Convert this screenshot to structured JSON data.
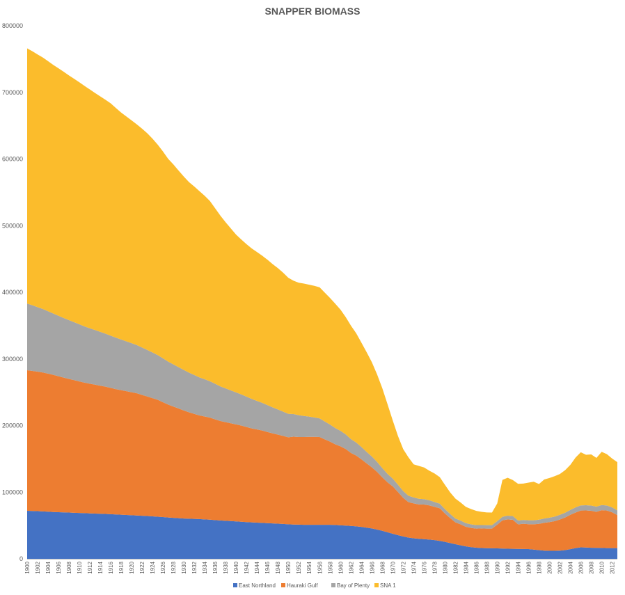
{
  "chart_data": {
    "type": "area",
    "stacked": true,
    "title": "SNAPPER BIOMASS",
    "xlabel": "",
    "ylabel": "",
    "ylim": [
      0,
      800000
    ],
    "yticks": [
      "0",
      "100000",
      "200000",
      "300000",
      "400000",
      "500000",
      "600000",
      "700000",
      "800000"
    ],
    "xticks": [
      "1900",
      "1902",
      "1904",
      "1906",
      "1908",
      "1910",
      "1912",
      "1914",
      "1916",
      "1918",
      "1920",
      "1922",
      "1924",
      "1926",
      "1928",
      "1930",
      "1932",
      "1934",
      "1936",
      "1938",
      "1940",
      "1942",
      "1944",
      "1946",
      "1948",
      "1950",
      "1952",
      "1954",
      "1956",
      "1958",
      "1960",
      "1962",
      "1964",
      "1966",
      "1968",
      "1970",
      "1972",
      "1974",
      "1976",
      "1978",
      "1980",
      "1982",
      "1984",
      "1986",
      "1988",
      "1990",
      "1992",
      "1994",
      "1996",
      "1998",
      "2000",
      "2002",
      "2004",
      "2006",
      "2008",
      "2010",
      "2012"
    ],
    "x": [
      1900,
      1901,
      1902,
      1903,
      1904,
      1905,
      1906,
      1907,
      1908,
      1909,
      1910,
      1911,
      1912,
      1913,
      1914,
      1915,
      1916,
      1917,
      1918,
      1919,
      1920,
      1921,
      1922,
      1923,
      1924,
      1925,
      1926,
      1927,
      1928,
      1929,
      1930,
      1931,
      1932,
      1933,
      1934,
      1935,
      1936,
      1937,
      1938,
      1939,
      1940,
      1941,
      1942,
      1943,
      1944,
      1945,
      1946,
      1947,
      1948,
      1949,
      1950,
      1951,
      1952,
      1953,
      1954,
      1955,
      1956,
      1957,
      1958,
      1959,
      1960,
      1961,
      1962,
      1963,
      1964,
      1965,
      1966,
      1967,
      1968,
      1969,
      1970,
      1971,
      1972,
      1973,
      1974,
      1975,
      1976,
      1977,
      1978,
      1979,
      1980,
      1981,
      1982,
      1983,
      1984,
      1985,
      1986,
      1987,
      1988,
      1989,
      1990,
      1991,
      1992,
      1993,
      1994,
      1995,
      1996,
      1997,
      1998,
      1999,
      2000,
      2001,
      2002,
      2003,
      2004,
      2005,
      2006,
      2007,
      2008,
      2009,
      2010,
      2011,
      2012,
      2013
    ],
    "series": [
      {
        "name": "East Northland",
        "color": "#4472C4",
        "values": [
          72000,
          71800,
          71500,
          71100,
          70700,
          70300,
          70000,
          69700,
          69400,
          69100,
          68800,
          68500,
          68200,
          67900,
          67600,
          67300,
          67000,
          66600,
          66200,
          65800,
          65400,
          65000,
          64600,
          64200,
          63700,
          63200,
          62600,
          62000,
          61500,
          61000,
          60500,
          60200,
          59900,
          59600,
          59200,
          58700,
          58100,
          57600,
          57100,
          56600,
          56100,
          55600,
          55100,
          54700,
          54300,
          53900,
          53500,
          53100,
          52700,
          52300,
          51800,
          51500,
          51300,
          51100,
          51000,
          51000,
          51000,
          51000,
          51000,
          50800,
          50300,
          49900,
          49400,
          48700,
          47900,
          46800,
          45500,
          43900,
          42000,
          39800,
          37600,
          35500,
          33500,
          31900,
          30800,
          30000,
          29500,
          28800,
          28100,
          26900,
          25400,
          23600,
          21900,
          20200,
          18700,
          17500,
          16700,
          16200,
          15900,
          15800,
          15600,
          15400,
          15200,
          15000,
          14900,
          14800,
          14600,
          13800,
          13000,
          12300,
          12000,
          12000,
          12300,
          13000,
          14500,
          16000,
          17200,
          17000,
          16600,
          16500,
          16300,
          16100,
          16000,
          16000
        ]
      },
      {
        "name": "Hauraki Gulf",
        "color": "#ED7D31",
        "values": [
          211000,
          210200,
          209400,
          208600,
          207200,
          205800,
          204000,
          202200,
          200600,
          199000,
          197400,
          195800,
          194600,
          193400,
          192200,
          191000,
          189500,
          188000,
          186900,
          185800,
          184600,
          183400,
          181400,
          179400,
          177400,
          175400,
          172400,
          169400,
          167000,
          164600,
          162100,
          159600,
          157600,
          155600,
          154400,
          153200,
          151200,
          149200,
          148000,
          146800,
          145600,
          144400,
          142700,
          141000,
          139800,
          138600,
          136900,
          135200,
          133700,
          132200,
          130600,
          131800,
          131400,
          131600,
          132000,
          132000,
          131700,
          128200,
          124800,
          121000,
          118500,
          114800,
          109500,
          106200,
          101500,
          96400,
          91900,
          86500,
          80300,
          75000,
          71200,
          64800,
          58000,
          53200,
          52300,
          51600,
          52000,
          51300,
          49800,
          48900,
          42600,
          37500,
          32800,
          31500,
          29300,
          28800,
          28600,
          29300,
          29400,
          29500,
          35600,
          42300,
          44000,
          43500,
          36800,
          37800,
          37300,
          38000,
          39500,
          41800,
          43100,
          44500,
          46700,
          49000,
          51500,
          53500,
          55300,
          55600,
          55500,
          54000,
          56700,
          56300,
          53800,
          49500
        ]
      },
      {
        "name": "Bay of Plenty",
        "color": "#A5A5A5",
        "values": [
          100000,
          98600,
          96800,
          95200,
          93600,
          92000,
          90800,
          89500,
          88200,
          87000,
          85700,
          84400,
          83200,
          82000,
          80800,
          79600,
          78400,
          77200,
          76000,
          74800,
          73600,
          72400,
          71100,
          69800,
          68500,
          67200,
          65900,
          64600,
          63300,
          62000,
          60800,
          59600,
          58300,
          57000,
          55800,
          54600,
          53300,
          52000,
          50700,
          49400,
          48100,
          46800,
          45500,
          44200,
          42900,
          41600,
          40300,
          39000,
          37700,
          36400,
          35200,
          34000,
          32800,
          31600,
          30400,
          29200,
          28000,
          26800,
          25600,
          24400,
          23200,
          22000,
          20800,
          19600,
          18500,
          17300,
          16100,
          15000,
          13800,
          12600,
          11600,
          10900,
          10200,
          9600,
          9000,
          8500,
          8100,
          7700,
          7300,
          6900,
          6500,
          6100,
          5800,
          5600,
          5500,
          5400,
          5300,
          5200,
          5200,
          5200,
          5300,
          5400,
          5500,
          5600,
          5700,
          5800,
          5900,
          6000,
          6200,
          6400,
          6600,
          6800,
          7000,
          7200,
          7400,
          7600,
          7700,
          7800,
          7800,
          7800,
          7700,
          7600,
          7400,
          7200
        ]
      },
      {
        "name": "SNA 1",
        "color": "#FBBC2C",
        "values": [
          383000,
          381200,
          379200,
          377400,
          375400,
          373200,
          371400,
          369500,
          367300,
          365200,
          363300,
          361000,
          358400,
          355800,
          353400,
          351000,
          348600,
          344700,
          340600,
          337500,
          334400,
          331100,
          328400,
          325200,
          320900,
          315700,
          310400,
          304300,
          300100,
          295000,
          290200,
          285900,
          282900,
          279500,
          275400,
          270500,
          263400,
          256200,
          249300,
          243000,
          236700,
          232500,
          228900,
          225900,
          223400,
          220900,
          218200,
          215000,
          212200,
          208600,
          204200,
          200100,
          198900,
          198700,
          197900,
          197500,
          196700,
          193300,
          190000,
          186500,
          181900,
          175900,
          170200,
          164000,
          156500,
          149600,
          141500,
          131400,
          119900,
          104600,
          87200,
          73200,
          62900,
          57700,
          49700,
          49300,
          47500,
          44400,
          42900,
          39900,
          36400,
          32400,
          29800,
          27200,
          24500,
          23000,
          21300,
          19800,
          19100,
          19000,
          26500,
          55300,
          57000,
          54000,
          55100,
          54500,
          56600,
          57900,
          53600,
          58500,
          59600,
          60700,
          61300,
          63800,
          67600,
          74900,
          79700,
          75700,
          76800,
          73200,
          79900,
          77100,
          73300,
          72300
        ]
      }
    ]
  }
}
